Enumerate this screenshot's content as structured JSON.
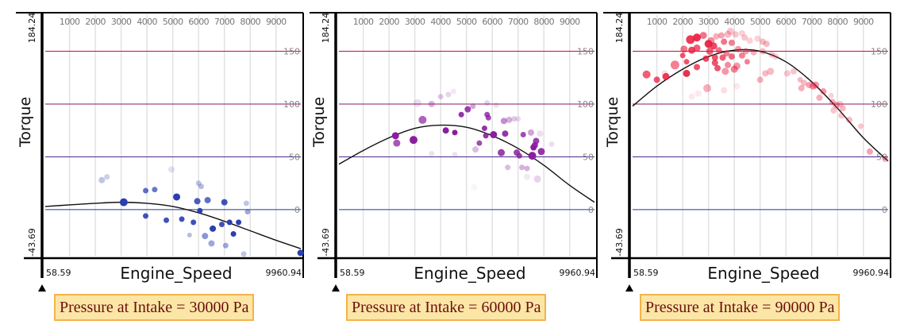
{
  "chart_data": [
    {
      "type": "scatter",
      "title": "",
      "caption": "Pressure at Intake = 30000 Pa",
      "xlabel": "Engine_Speed",
      "ylabel": "Torque",
      "xlim": [
        58.59,
        9960.94
      ],
      "ylim": [
        -43.69,
        184.24
      ],
      "x_range_labels": [
        "58.59",
        "9960.94"
      ],
      "y_range_labels": [
        "184.24",
        "-43.69"
      ],
      "x_ticks": [
        "1000",
        "2000",
        "3000",
        "4000",
        "5000",
        "6000",
        "7000",
        "8000",
        "9000"
      ],
      "y_ticks": [
        "150",
        "100",
        "50",
        "0"
      ],
      "grid": true,
      "point_color": "#2b3fb0",
      "curve": {
        "name": "fit",
        "x": [
          58.59,
          1000,
          2000,
          3000,
          4000,
          5000,
          6000,
          7000,
          8000,
          9000,
          9960.94
        ],
        "y": [
          3,
          4.5,
          6,
          7,
          6,
          3,
          -3,
          -11,
          -20,
          -29,
          -37
        ]
      },
      "points": [
        {
          "x": 2250,
          "y": 28,
          "o": 0.3,
          "s": 4
        },
        {
          "x": 2450,
          "y": 31,
          "o": 0.25,
          "s": 3.5
        },
        {
          "x": 3100,
          "y": 7,
          "o": 1,
          "s": 5
        },
        {
          "x": 3950,
          "y": 18,
          "o": 0.75,
          "s": 3.5
        },
        {
          "x": 4300,
          "y": 19,
          "o": 0.7,
          "s": 3.5
        },
        {
          "x": 4950,
          "y": 38,
          "o": 0.15,
          "s": 4
        },
        {
          "x": 5150,
          "y": 12,
          "o": 1,
          "s": 4.5
        },
        {
          "x": 6000,
          "y": 25,
          "o": 0.3,
          "s": 3.5
        },
        {
          "x": 6100,
          "y": 22,
          "o": 0.35,
          "s": 3.5
        },
        {
          "x": 5950,
          "y": 8,
          "o": 0.85,
          "s": 4
        },
        {
          "x": 6350,
          "y": 9,
          "o": 0.75,
          "s": 4
        },
        {
          "x": 7000,
          "y": 7,
          "o": 0.9,
          "s": 4
        },
        {
          "x": 7850,
          "y": 6,
          "o": 0.3,
          "s": 3.5
        },
        {
          "x": 7900,
          "y": -2,
          "o": 0.45,
          "s": 3.5
        },
        {
          "x": 3950,
          "y": -6,
          "o": 0.9,
          "s": 3.5
        },
        {
          "x": 4750,
          "y": -10,
          "o": 0.9,
          "s": 3.5
        },
        {
          "x": 5350,
          "y": -9,
          "o": 0.9,
          "s": 3.5
        },
        {
          "x": 5800,
          "y": -12,
          "o": 0.9,
          "s": 3.5
        },
        {
          "x": 6050,
          "y": -1,
          "o": 1,
          "s": 3.5
        },
        {
          "x": 6550,
          "y": -18,
          "o": 1,
          "s": 4
        },
        {
          "x": 6900,
          "y": -14,
          "o": 0.9,
          "s": 3.5
        },
        {
          "x": 7200,
          "y": -12,
          "o": 1,
          "s": 3.5
        },
        {
          "x": 7550,
          "y": -12,
          "o": 1,
          "s": 3.5
        },
        {
          "x": 7350,
          "y": -23,
          "o": 1,
          "s": 3.5
        },
        {
          "x": 5650,
          "y": -24,
          "o": 0.35,
          "s": 3
        },
        {
          "x": 6250,
          "y": -25,
          "o": 0.55,
          "s": 4
        },
        {
          "x": 6500,
          "y": -32,
          "o": 0.45,
          "s": 4
        },
        {
          "x": 7050,
          "y": -34,
          "o": 0.45,
          "s": 3.5
        },
        {
          "x": 7750,
          "y": -42,
          "o": 0.3,
          "s": 3.5
        },
        {
          "x": 9950,
          "y": -41,
          "o": 1,
          "s": 4
        }
      ]
    },
    {
      "type": "scatter",
      "title": "",
      "caption": "Pressure at Intake = 60000 Pa",
      "xlabel": "Engine_Speed",
      "ylabel": "Torque",
      "xlim": [
        58.59,
        9960.94
      ],
      "ylim": [
        -43.69,
        184.24
      ],
      "x_range_labels": [
        "58.59",
        "9960.94"
      ],
      "y_range_labels": [
        "184.24",
        "-43.69"
      ],
      "x_ticks": [
        "1000",
        "2000",
        "3000",
        "4000",
        "5000",
        "6000",
        "7000",
        "8000",
        "9000"
      ],
      "y_ticks": [
        "150",
        "100",
        "50",
        "0"
      ],
      "grid": true,
      "point_color": "#8a1f9e",
      "curve": {
        "name": "fit",
        "x": [
          58.59,
          1000,
          2000,
          3000,
          4000,
          5000,
          6000,
          7000,
          8000,
          9000,
          9960.94
        ],
        "y": [
          43,
          56,
          68,
          77,
          80,
          78,
          70,
          58,
          42,
          23,
          7
        ]
      },
      "points": [
        {
          "x": 3100,
          "y": 101,
          "o": 0.15,
          "s": 5
        },
        {
          "x": 3650,
          "y": 100,
          "o": 0.35,
          "s": 4
        },
        {
          "x": 4000,
          "y": 107,
          "o": 0.25,
          "s": 3.5
        },
        {
          "x": 4300,
          "y": 109,
          "o": 0.2,
          "s": 3.5
        },
        {
          "x": 4500,
          "y": 112,
          "o": 0.1,
          "s": 3.5
        },
        {
          "x": 5250,
          "y": 98,
          "o": 0.4,
          "s": 3.5
        },
        {
          "x": 5800,
          "y": 101,
          "o": 0.2,
          "s": 3.5
        },
        {
          "x": 6150,
          "y": 99,
          "o": 0.15,
          "s": 3.5
        },
        {
          "x": 3300,
          "y": 85,
          "o": 0.7,
          "s": 5
        },
        {
          "x": 4800,
          "y": 90,
          "o": 0.9,
          "s": 3.5
        },
        {
          "x": 5050,
          "y": 95,
          "o": 0.85,
          "s": 4
        },
        {
          "x": 5800,
          "y": 90,
          "o": 0.8,
          "s": 3.5
        },
        {
          "x": 5850,
          "y": 87,
          "o": 0.8,
          "s": 3.5
        },
        {
          "x": 6450,
          "y": 84,
          "o": 0.5,
          "s": 4
        },
        {
          "x": 6650,
          "y": 85,
          "o": 0.35,
          "s": 4
        },
        {
          "x": 6850,
          "y": 86,
          "o": 0.25,
          "s": 3.5
        },
        {
          "x": 7000,
          "y": 86,
          "o": 0.15,
          "s": 3.5
        },
        {
          "x": 2250,
          "y": 70,
          "o": 1,
          "s": 4.5
        },
        {
          "x": 2300,
          "y": 63,
          "o": 0.75,
          "s": 4.5
        },
        {
          "x": 2950,
          "y": 66,
          "o": 1,
          "s": 5
        },
        {
          "x": 4200,
          "y": 75,
          "o": 1,
          "s": 4
        },
        {
          "x": 4550,
          "y": 73,
          "o": 1,
          "s": 3.5
        },
        {
          "x": 5700,
          "y": 77,
          "o": 0.9,
          "s": 3.5
        },
        {
          "x": 5750,
          "y": 70,
          "o": 0.9,
          "s": 3.5
        },
        {
          "x": 6050,
          "y": 71,
          "o": 1,
          "s": 4.5
        },
        {
          "x": 6500,
          "y": 72,
          "o": 0.9,
          "s": 4
        },
        {
          "x": 7200,
          "y": 71,
          "o": 0.8,
          "s": 3.5
        },
        {
          "x": 7500,
          "y": 73,
          "o": 0.4,
          "s": 4
        },
        {
          "x": 7850,
          "y": 72,
          "o": 0.15,
          "s": 4
        },
        {
          "x": 5500,
          "y": 63,
          "o": 0.8,
          "s": 3.5
        },
        {
          "x": 5350,
          "y": 57,
          "o": 0.3,
          "s": 4
        },
        {
          "x": 6350,
          "y": 54,
          "o": 0.85,
          "s": 4.5
        },
        {
          "x": 6950,
          "y": 54,
          "o": 0.85,
          "s": 4
        },
        {
          "x": 7050,
          "y": 51,
          "o": 0.85,
          "s": 3.5
        },
        {
          "x": 7700,
          "y": 65,
          "o": 0.85,
          "s": 4
        },
        {
          "x": 7650,
          "y": 61,
          "o": 0.9,
          "s": 4
        },
        {
          "x": 7600,
          "y": 59,
          "o": 1,
          "s": 4
        },
        {
          "x": 7550,
          "y": 51,
          "o": 1,
          "s": 5
        },
        {
          "x": 7900,
          "y": 55,
          "o": 0.9,
          "s": 4.5
        },
        {
          "x": 8300,
          "y": 62,
          "o": 0.15,
          "s": 3.5
        },
        {
          "x": 3650,
          "y": 53,
          "o": 0.15,
          "s": 3.5
        },
        {
          "x": 4550,
          "y": 52,
          "o": 0.15,
          "s": 3.5
        },
        {
          "x": 6600,
          "y": 40,
          "o": 0.3,
          "s": 3.5
        },
        {
          "x": 7150,
          "y": 40,
          "o": 0.35,
          "s": 3.5
        },
        {
          "x": 7350,
          "y": 39,
          "o": 0.35,
          "s": 3.5
        },
        {
          "x": 7350,
          "y": 31,
          "o": 0.1,
          "s": 4
        },
        {
          "x": 7750,
          "y": 29,
          "o": 0.2,
          "s": 4.5
        },
        {
          "x": 5300,
          "y": 21,
          "o": 0.05,
          "s": 4
        }
      ]
    },
    {
      "type": "scatter",
      "title": "",
      "caption": "Pressure at Intake = 90000 Pa",
      "xlabel": "Engine_Speed",
      "ylabel": "Torque",
      "xlim": [
        58.59,
        9960.94
      ],
      "ylim": [
        -43.69,
        184.24
      ],
      "x_range_labels": [
        "58.59",
        "9960.94"
      ],
      "y_range_labels": [
        "184.24",
        "-43.69"
      ],
      "x_ticks": [
        "1000",
        "2000",
        "3000",
        "4000",
        "5000",
        "6000",
        "7000",
        "8000",
        "9000"
      ],
      "y_ticks": [
        "150",
        "100",
        "50",
        "0"
      ],
      "grid": true,
      "point_color": "#e8193c",
      "curve": {
        "name": "fit",
        "x": [
          58.59,
          1000,
          2000,
          3000,
          4000,
          5000,
          6000,
          7000,
          8000,
          9000,
          9960.94
        ],
        "y": [
          98,
          117,
          133,
          145,
          151,
          150,
          140,
          121,
          96,
          68,
          46
        ]
      },
      "points": [
        {
          "x": 2300,
          "y": 161,
          "o": 0.85,
          "s": 5.5
        },
        {
          "x": 2550,
          "y": 163,
          "o": 0.9,
          "s": 5
        },
        {
          "x": 2800,
          "y": 165,
          "o": 0.6,
          "s": 4.5
        },
        {
          "x": 3100,
          "y": 160,
          "o": 0.5,
          "s": 4.5
        },
        {
          "x": 3300,
          "y": 164,
          "o": 0.35,
          "s": 4
        },
        {
          "x": 3500,
          "y": 165,
          "o": 0.4,
          "s": 4
        },
        {
          "x": 3750,
          "y": 166,
          "o": 0.3,
          "s": 4.5
        },
        {
          "x": 3850,
          "y": 169,
          "o": 0.25,
          "s": 4.5
        },
        {
          "x": 4050,
          "y": 166,
          "o": 0.25,
          "s": 4
        },
        {
          "x": 4300,
          "y": 167,
          "o": 0.2,
          "s": 4
        },
        {
          "x": 4400,
          "y": 163,
          "o": 0.25,
          "s": 4
        },
        {
          "x": 4600,
          "y": 160,
          "o": 0.2,
          "s": 4
        },
        {
          "x": 4900,
          "y": 162,
          "o": 0.2,
          "s": 4
        },
        {
          "x": 5100,
          "y": 159,
          "o": 0.3,
          "s": 4
        },
        {
          "x": 5250,
          "y": 157,
          "o": 0.3,
          "s": 4
        },
        {
          "x": 3000,
          "y": 157,
          "o": 0.9,
          "s": 5
        },
        {
          "x": 3200,
          "y": 155,
          "o": 0.8,
          "s": 4.5
        },
        {
          "x": 3600,
          "y": 159,
          "o": 0.6,
          "s": 4
        },
        {
          "x": 3900,
          "y": 158,
          "o": 0.55,
          "s": 4
        },
        {
          "x": 2050,
          "y": 152,
          "o": 0.6,
          "s": 4.5
        },
        {
          "x": 2350,
          "y": 151,
          "o": 0.8,
          "s": 4.5
        },
        {
          "x": 2550,
          "y": 153,
          "o": 0.7,
          "s": 4.5
        },
        {
          "x": 3050,
          "y": 150,
          "o": 0.7,
          "s": 4.5
        },
        {
          "x": 3400,
          "y": 151,
          "o": 0.6,
          "s": 4
        },
        {
          "x": 3700,
          "y": 148,
          "o": 0.55,
          "s": 4
        },
        {
          "x": 4150,
          "y": 152,
          "o": 0.45,
          "s": 4
        },
        {
          "x": 4450,
          "y": 150,
          "o": 0.4,
          "s": 4
        },
        {
          "x": 4750,
          "y": 149,
          "o": 0.35,
          "s": 4
        },
        {
          "x": 5100,
          "y": 150,
          "o": 0.3,
          "s": 4
        },
        {
          "x": 2000,
          "y": 146,
          "o": 0.75,
          "s": 3.5
        },
        {
          "x": 2900,
          "y": 143,
          "o": 0.8,
          "s": 4
        },
        {
          "x": 3250,
          "y": 144,
          "o": 0.75,
          "s": 4
        },
        {
          "x": 3550,
          "y": 144,
          "o": 0.7,
          "s": 4
        },
        {
          "x": 3900,
          "y": 145,
          "o": 0.65,
          "s": 4
        },
        {
          "x": 4300,
          "y": 146,
          "o": 0.55,
          "s": 4
        },
        {
          "x": 5450,
          "y": 147,
          "o": 0.25,
          "s": 4
        },
        {
          "x": 5600,
          "y": 145,
          "o": 0.2,
          "s": 4
        },
        {
          "x": 1700,
          "y": 137,
          "o": 0.55,
          "s": 5.5
        },
        {
          "x": 2150,
          "y": 140,
          "o": 0.75,
          "s": 3.5
        },
        {
          "x": 3250,
          "y": 139,
          "o": 0.75,
          "s": 4
        },
        {
          "x": 3750,
          "y": 137,
          "o": 0.5,
          "s": 4
        },
        {
          "x": 4100,
          "y": 136,
          "o": 0.45,
          "s": 4.5
        },
        {
          "x": 4500,
          "y": 140,
          "o": 0.55,
          "s": 3.5
        },
        {
          "x": 2550,
          "y": 135,
          "o": 0.75,
          "s": 4
        },
        {
          "x": 3350,
          "y": 134,
          "o": 0.75,
          "s": 4
        },
        {
          "x": 3650,
          "y": 131,
          "o": 0.45,
          "s": 4.5
        },
        {
          "x": 4000,
          "y": 133,
          "o": 0.55,
          "s": 4.5
        },
        {
          "x": 2150,
          "y": 129,
          "o": 0.9,
          "s": 4.5
        },
        {
          "x": 5200,
          "y": 129,
          "o": 0.3,
          "s": 4
        },
        {
          "x": 5400,
          "y": 131,
          "o": 0.3,
          "s": 4.5
        },
        {
          "x": 5000,
          "y": 123,
          "o": 0.35,
          "s": 4
        },
        {
          "x": 6050,
          "y": 129,
          "o": 0.25,
          "s": 4
        },
        {
          "x": 6300,
          "y": 131,
          "o": 0.25,
          "s": 4
        },
        {
          "x": 600,
          "y": 128,
          "o": 0.7,
          "s": 5
        },
        {
          "x": 1000,
          "y": 123,
          "o": 0.75,
          "s": 4
        },
        {
          "x": 1350,
          "y": 126,
          "o": 0.85,
          "s": 4.5
        },
        {
          "x": 1300,
          "y": 129,
          "o": 0.15,
          "s": 4
        },
        {
          "x": 2950,
          "y": 115,
          "o": 0.35,
          "s": 5
        },
        {
          "x": 3600,
          "y": 113,
          "o": 0.15,
          "s": 4
        },
        {
          "x": 2600,
          "y": 110,
          "o": 0.1,
          "s": 4
        },
        {
          "x": 4100,
          "y": 117,
          "o": 0.1,
          "s": 4
        },
        {
          "x": 2350,
          "y": 107,
          "o": 0.1,
          "s": 4
        },
        {
          "x": 6550,
          "y": 123,
          "o": 0.3,
          "s": 3.5
        },
        {
          "x": 6700,
          "y": 120,
          "o": 0.3,
          "s": 4
        },
        {
          "x": 6900,
          "y": 118,
          "o": 0.4,
          "s": 4
        },
        {
          "x": 7050,
          "y": 117,
          "o": 0.45,
          "s": 4.5
        },
        {
          "x": 7150,
          "y": 118,
          "o": 0.45,
          "s": 4.5
        },
        {
          "x": 6600,
          "y": 115,
          "o": 0.35,
          "s": 4
        },
        {
          "x": 7450,
          "y": 112,
          "o": 0.45,
          "s": 4
        },
        {
          "x": 7300,
          "y": 106,
          "o": 0.35,
          "s": 4
        },
        {
          "x": 7750,
          "y": 108,
          "o": 0.2,
          "s": 3.5
        },
        {
          "x": 7800,
          "y": 102,
          "o": 0.35,
          "s": 4
        },
        {
          "x": 7950,
          "y": 99,
          "o": 0.35,
          "s": 4.5
        },
        {
          "x": 8100,
          "y": 100,
          "o": 0.25,
          "s": 4
        },
        {
          "x": 7850,
          "y": 94,
          "o": 0.25,
          "s": 4
        },
        {
          "x": 8200,
          "y": 96,
          "o": 0.3,
          "s": 4
        },
        {
          "x": 8150,
          "y": 89,
          "o": 0.25,
          "s": 4
        },
        {
          "x": 8450,
          "y": 85,
          "o": 0.3,
          "s": 4
        },
        {
          "x": 8900,
          "y": 79,
          "o": 0.25,
          "s": 3.5
        },
        {
          "x": 9250,
          "y": 55,
          "o": 0.4,
          "s": 4
        },
        {
          "x": 9850,
          "y": 48,
          "o": 0.3,
          "s": 4
        }
      ]
    }
  ],
  "panels": [
    {
      "caption": "Pressure at Intake = 30000 Pa"
    },
    {
      "caption": "Pressure at Intake = 60000 Pa"
    },
    {
      "caption": "Pressure at Intake = 90000 Pa"
    }
  ],
  "colors": {
    "line_150": "#c8102e",
    "line_100": "#8b1a5a",
    "line_50": "#4b2a8f",
    "line_0": "#1f3a93",
    "caption_bg": "#fbe6a6",
    "caption_border": "#f5b24a",
    "caption_text": "#6b0f0f"
  }
}
